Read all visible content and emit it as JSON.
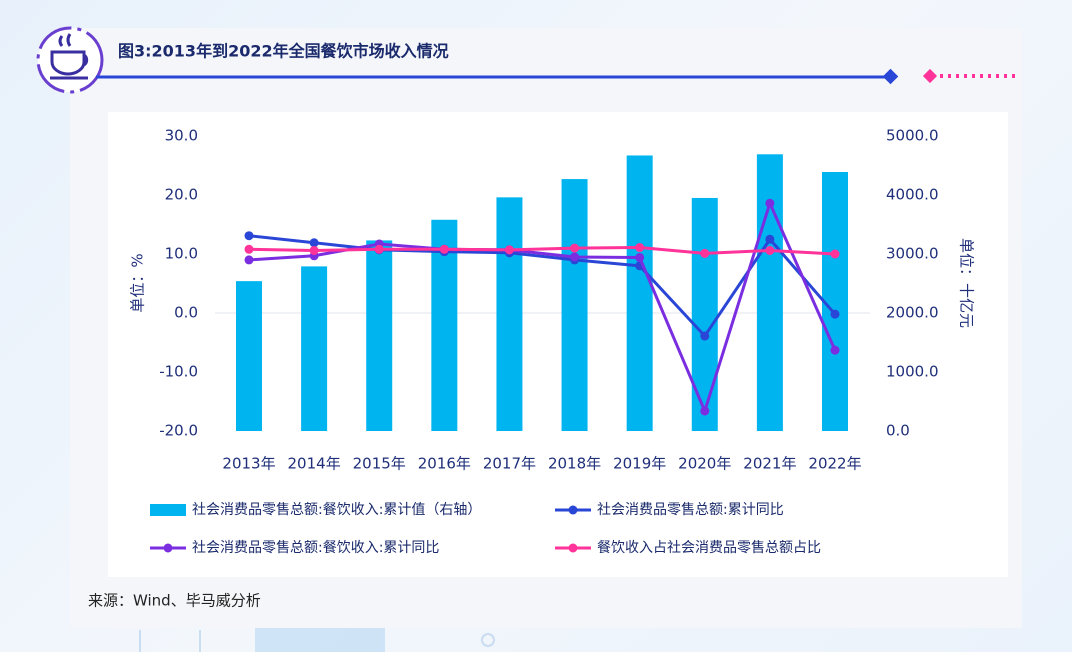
{
  "chart_data": {
    "type": "bar_line",
    "title": "图3:2013年到2022年全国餐饮市场收入情况",
    "ylabel": "单位：%",
    "y2label": "单位：十亿元",
    "source": "来源：Wind、毕马威分析",
    "categories": [
      "2013年",
      "2014年",
      "2015年",
      "2016年",
      "2017年",
      "2018年",
      "2019年",
      "2020年",
      "2021年",
      "2022年"
    ],
    "ylim": [
      -20,
      30
    ],
    "yticks": [
      {
        "value": 30,
        "label": "30.0"
      },
      {
        "value": 20,
        "label": "20.0"
      },
      {
        "value": 10,
        "label": "10.0"
      },
      {
        "value": 0,
        "label": "0.0"
      },
      {
        "value": -10,
        "label": "-10.0"
      },
      {
        "value": -20,
        "label": "-20.0"
      }
    ],
    "y2lim": [
      0,
      5000
    ],
    "y2ticks": [
      {
        "value": 5000,
        "label": "5000.0"
      },
      {
        "value": 4000,
        "label": "4000.0"
      },
      {
        "value": 3000,
        "label": "3000.0"
      },
      {
        "value": 2000,
        "label": "2000.0"
      },
      {
        "value": 1000,
        "label": "1000.0"
      },
      {
        "value": 0,
        "label": "0.0"
      }
    ],
    "series": [
      {
        "name": "社会消费品零售总额:餐饮收入:累计值（右轴）",
        "kind": "bar",
        "axis": "y2",
        "color": "#00b4f0",
        "values": [
          2540,
          2790,
          3230,
          3580,
          3960,
          4270,
          4670,
          3950,
          4690,
          4390
        ]
      },
      {
        "name": "社会消费品零售总额:累计同比",
        "kind": "line",
        "color": "#2a46d6",
        "values": [
          13.1,
          11.9,
          10.7,
          10.4,
          10.2,
          9.0,
          8.0,
          -3.9,
          12.5,
          -0.2
        ]
      },
      {
        "name": "社会消费品零售总额:餐饮收入:累计同比",
        "kind": "line",
        "color": "#7a2ee0",
        "values": [
          9.0,
          9.7,
          11.7,
          10.8,
          10.7,
          9.5,
          9.4,
          -16.6,
          18.6,
          -6.3
        ]
      },
      {
        "name": "餐饮收入占社会消费品零售总额占比",
        "kind": "line",
        "color": "#ff3399",
        "values": [
          10.8,
          10.6,
          10.8,
          10.8,
          10.7,
          11.0,
          11.1,
          10.1,
          10.6,
          10.0
        ]
      }
    ]
  }
}
